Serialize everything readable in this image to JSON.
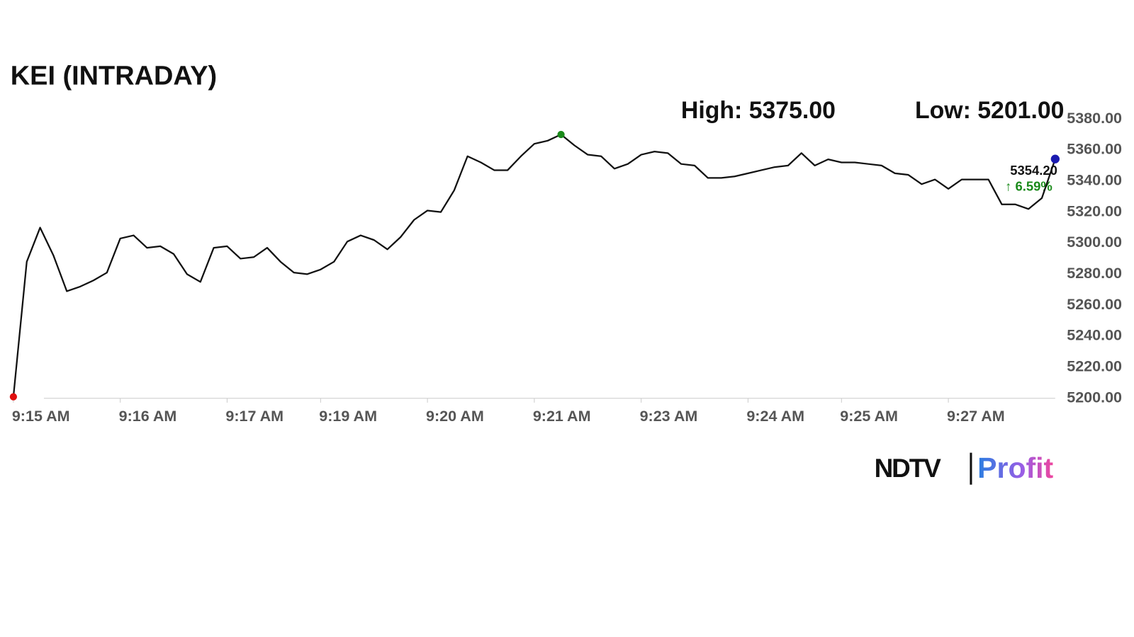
{
  "chart_data": {
    "type": "line",
    "title": "KEI (INTRADAY)",
    "high_label": "High: 5375.00",
    "low_label": "Low: 5201.00",
    "last_price_label": "5354.20",
    "change_label": "↑ 6.59%",
    "brand": [
      "NDTV",
      "Profit"
    ],
    "categories": [
      "9:15 AM",
      null,
      null,
      null,
      null,
      null,
      null,
      null,
      "9:16 AM",
      null,
      null,
      null,
      null,
      null,
      null,
      null,
      "9:17 AM",
      null,
      null,
      null,
      null,
      null,
      null,
      "9:19 AM",
      null,
      null,
      null,
      null,
      null,
      null,
      null,
      "9:20 AM",
      null,
      null,
      null,
      null,
      null,
      null,
      null,
      "9:21 AM",
      null,
      null,
      null,
      null,
      null,
      null,
      null,
      "9:23 AM",
      null,
      null,
      null,
      null,
      null,
      null,
      null,
      "9:24 AM",
      null,
      null,
      null,
      null,
      null,
      null,
      "9:25 AM",
      null,
      null,
      null,
      null,
      null,
      null,
      null,
      "9:27 AM",
      null,
      null,
      null,
      null,
      null,
      null,
      null,
      null
    ],
    "series": [
      {
        "name": "KEI",
        "color": "#111111",
        "values": [
          5201,
          5288,
          5310,
          5292,
          5269,
          5272,
          5276,
          5281,
          5303,
          5305,
          5297,
          5298,
          5293,
          5280,
          5275,
          5297,
          5298,
          5290,
          5291,
          5297,
          5288,
          5281,
          5280,
          5283,
          5288,
          5301,
          5305,
          5302,
          5296,
          5304,
          5315,
          5321,
          5320,
          5334,
          5356,
          5352,
          5347,
          5347,
          5356,
          5364,
          5366,
          5370,
          5363,
          5357,
          5356,
          5348,
          5351,
          5357,
          5359,
          5358,
          5351,
          5350,
          5342,
          5342,
          5343,
          5345,
          5347,
          5349,
          5350,
          5358,
          5350,
          5354,
          5352,
          5352,
          5351,
          5350,
          5345,
          5344,
          5338,
          5341,
          5335,
          5341,
          5341,
          5341,
          5325,
          5325,
          5322,
          5329,
          5354.2
        ]
      }
    ],
    "markers": {
      "start": "#e01010",
      "high": "#1a8a1a",
      "last": "#1a1ab0"
    },
    "change_color": "#1a8a1a",
    "ylim": [
      5200,
      5380
    ],
    "yticks": [
      {
        "value": 5200,
        "label": "5200.00"
      },
      {
        "value": 5220,
        "label": "5220.00"
      },
      {
        "value": 5240,
        "label": "5240.00"
      },
      {
        "value": 5260,
        "label": "5260.00"
      },
      {
        "value": 5280,
        "label": "5280.00"
      },
      {
        "value": 5300,
        "label": "5300.00"
      },
      {
        "value": 5320,
        "label": "5320.00"
      },
      {
        "value": 5340,
        "label": "5340.00"
      },
      {
        "value": 5360,
        "label": "5360.00"
      },
      {
        "value": 5380,
        "label": "5380.00"
      }
    ],
    "grid": false
  }
}
